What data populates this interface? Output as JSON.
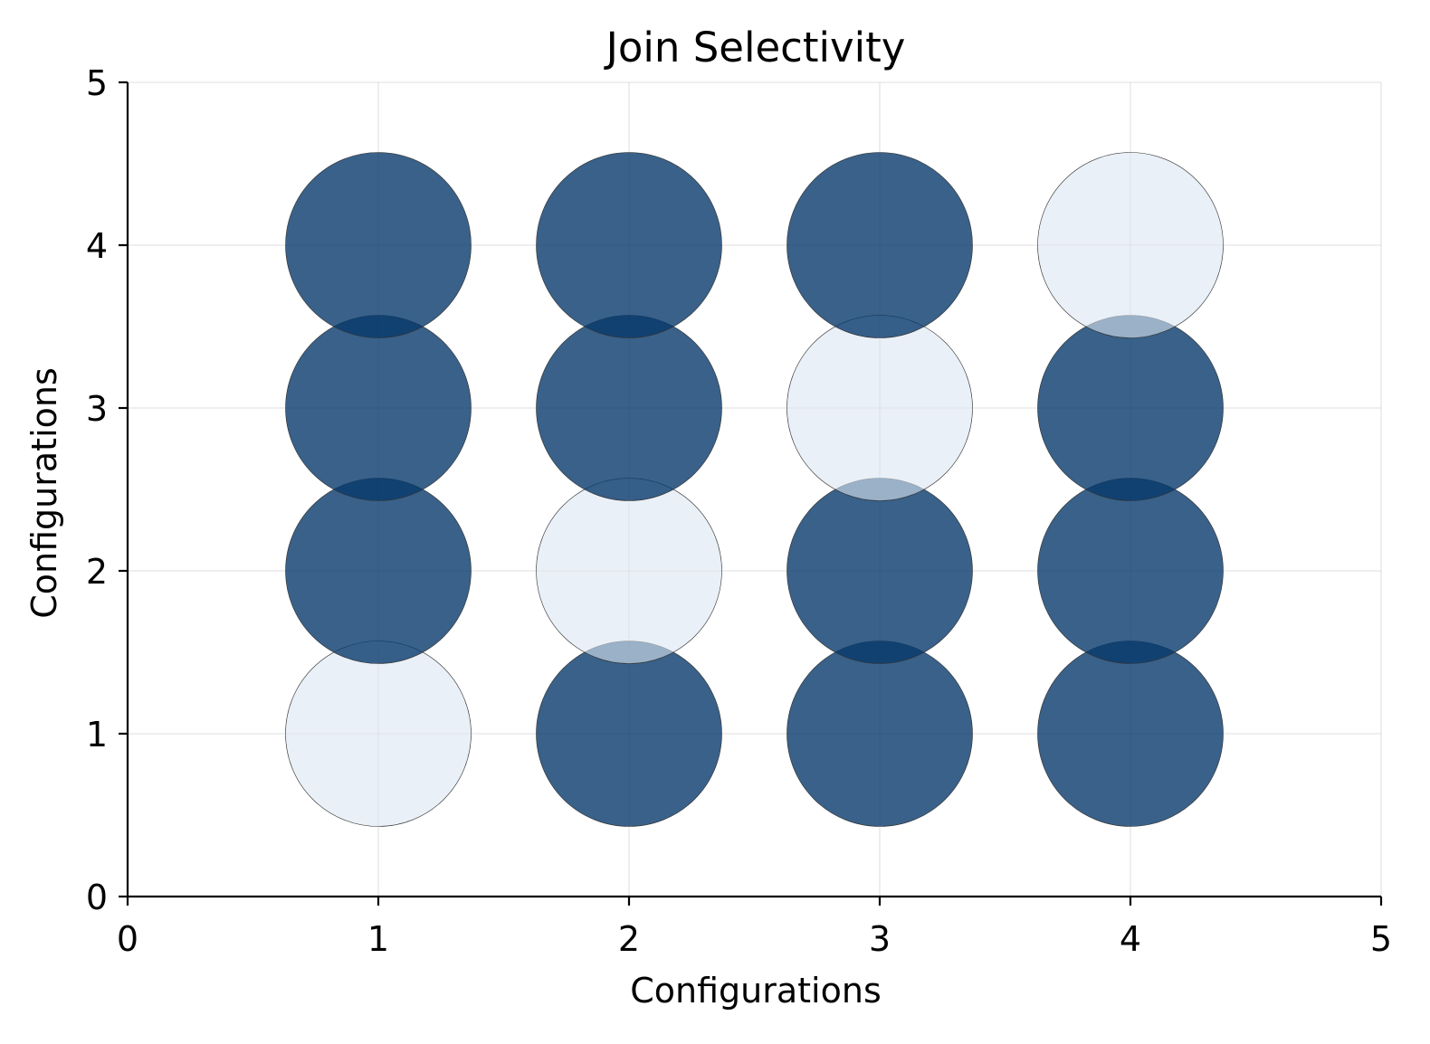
{
  "chart_data": {
    "type": "scatter",
    "title": "Join Selectivity",
    "xlabel": "Configurations",
    "ylabel": "Configurations",
    "xlim": [
      0,
      5
    ],
    "ylim": [
      0,
      5
    ],
    "xticks": [
      "0",
      "1",
      "2",
      "3",
      "4",
      "5"
    ],
    "yticks": [
      "0",
      "1",
      "2",
      "3",
      "4",
      "5"
    ],
    "grid": true,
    "bubble_radius": 0.37,
    "colors": {
      "on": "#08396b",
      "off": "#dce6f2",
      "on_opacity": 0.8,
      "off_opacity": 0.6
    },
    "points": [
      {
        "x": 1,
        "y": 1,
        "value": 0
      },
      {
        "x": 1,
        "y": 2,
        "value": 1
      },
      {
        "x": 1,
        "y": 3,
        "value": 1
      },
      {
        "x": 1,
        "y": 4,
        "value": 1
      },
      {
        "x": 2,
        "y": 1,
        "value": 1
      },
      {
        "x": 2,
        "y": 2,
        "value": 0
      },
      {
        "x": 2,
        "y": 3,
        "value": 1
      },
      {
        "x": 2,
        "y": 4,
        "value": 1
      },
      {
        "x": 3,
        "y": 1,
        "value": 1
      },
      {
        "x": 3,
        "y": 2,
        "value": 1
      },
      {
        "x": 3,
        "y": 3,
        "value": 0
      },
      {
        "x": 3,
        "y": 4,
        "value": 1
      },
      {
        "x": 4,
        "y": 1,
        "value": 1
      },
      {
        "x": 4,
        "y": 2,
        "value": 1
      },
      {
        "x": 4,
        "y": 3,
        "value": 1
      },
      {
        "x": 4,
        "y": 4,
        "value": 0
      }
    ]
  }
}
